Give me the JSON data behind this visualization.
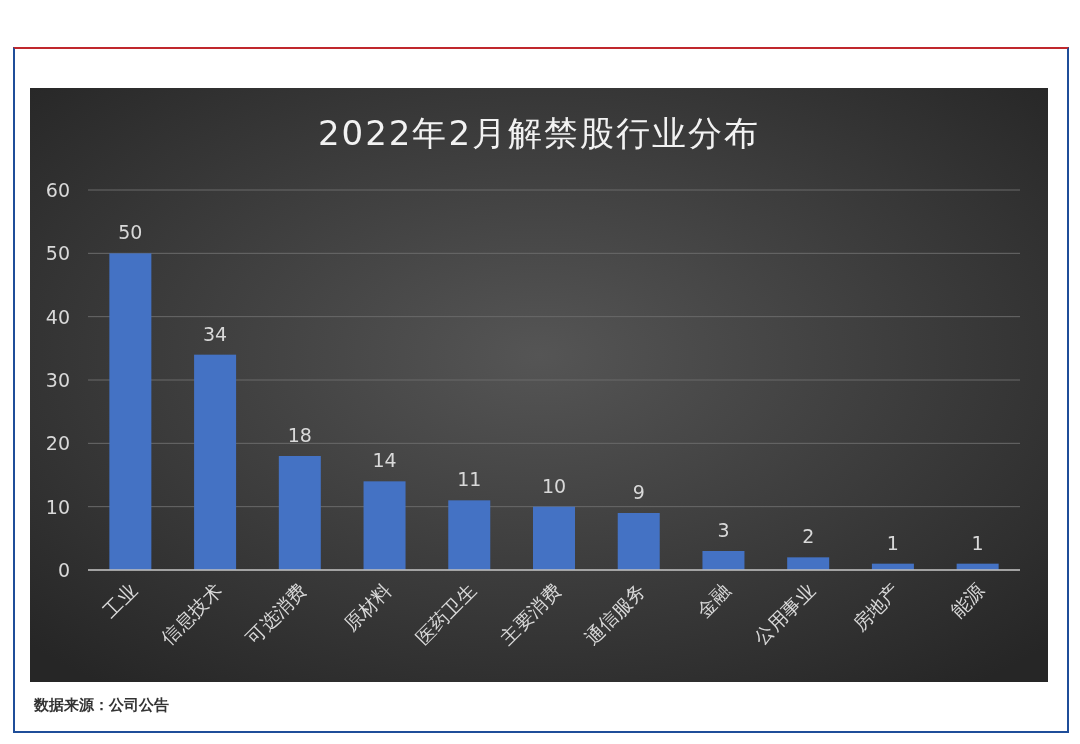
{
  "chart_data": {
    "type": "bar",
    "title": "2022年2月解禁股行业分布",
    "categories": [
      "工业",
      "信息技术",
      "可选消费",
      "原材料",
      "医药卫生",
      "主要消费",
      "通信服务",
      "金融",
      "公用事业",
      "房地产",
      "能源"
    ],
    "values": [
      50,
      34,
      18,
      14,
      11,
      10,
      9,
      3,
      2,
      1,
      1
    ],
    "color": "#4472c4",
    "ylim": [
      0,
      60
    ],
    "yticks": [
      0,
      10,
      20,
      30,
      40,
      50,
      60
    ],
    "grid": "y",
    "data_labels": true,
    "annotations": [
      "数据来源：公司公告"
    ]
  }
}
